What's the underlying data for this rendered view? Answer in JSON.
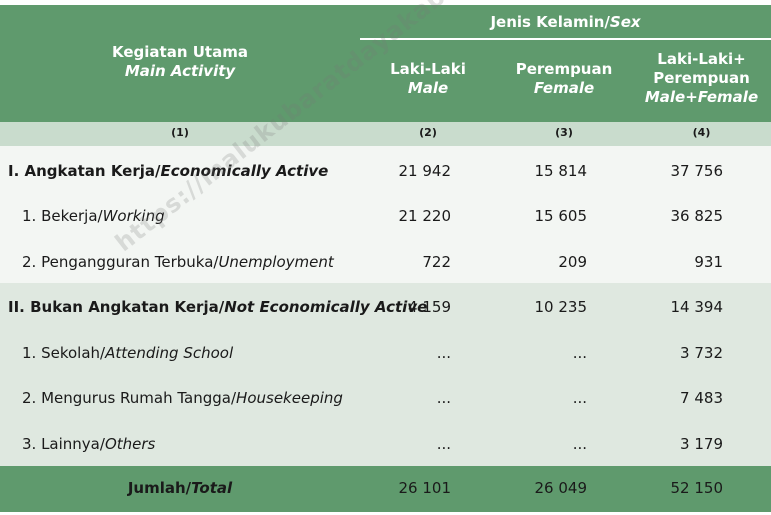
{
  "header": {
    "activity_id": "Kegiatan Utama",
    "activity_en": "Main Activity",
    "sex_id": "Jenis Kelamin/",
    "sex_en": "Sex",
    "male_id": "Laki-Laki",
    "male_en": "Male",
    "female_id": "Perempuan",
    "female_en": "Female",
    "both_id_1": "Laki-Laki+",
    "both_id_2": "Perempuan",
    "both_en": "Male+Female"
  },
  "column_numbers": [
    "(1)",
    "(2)",
    "(3)",
    "(4)"
  ],
  "rows": [
    {
      "label_id": "I. Angkatan Kerja/",
      "label_en": "Economically Active",
      "male": "21 942",
      "female": "15 814",
      "total": "37 756"
    },
    {
      "label_id": "1. Bekerja/",
      "label_en": "Working",
      "male": "21 220",
      "female": "15 605",
      "total": "36 825"
    },
    {
      "label_id": "2. Pengangguran Terbuka/",
      "label_en": "Unemployment",
      "male": "722",
      "female": "209",
      "total": "931"
    },
    {
      "label_id": "II. Bukan Angkatan Kerja/",
      "label_en": "Not Economically Active",
      "male": "4 159",
      "female": "10 235",
      "total": "14 394"
    },
    {
      "label_id": "1. Sekolah/",
      "label_en": "Attending School",
      "male": "...",
      "female": "...",
      "total": "3 732"
    },
    {
      "label_id": "2. Mengurus Rumah Tangga/",
      "label_en": "Housekeeping",
      "male": "...",
      "female": "...",
      "total": "7 483"
    },
    {
      "label_id": "3. Lainnya/",
      "label_en": "Others",
      "male": "...",
      "female": "...",
      "total": "3 179"
    }
  ],
  "total_row": {
    "label_id": "Jumlah/",
    "label_en": "Total",
    "male": "26 101",
    "female": "26 049",
    "total": "52 150"
  },
  "watermark": "https://malukubaratdayakab.bps.go.id",
  "colors": {
    "header": "#5f9a6d",
    "number_row": "#c9dccd",
    "section1": "#f3f6f3",
    "section2": "#dfe8e0"
  }
}
